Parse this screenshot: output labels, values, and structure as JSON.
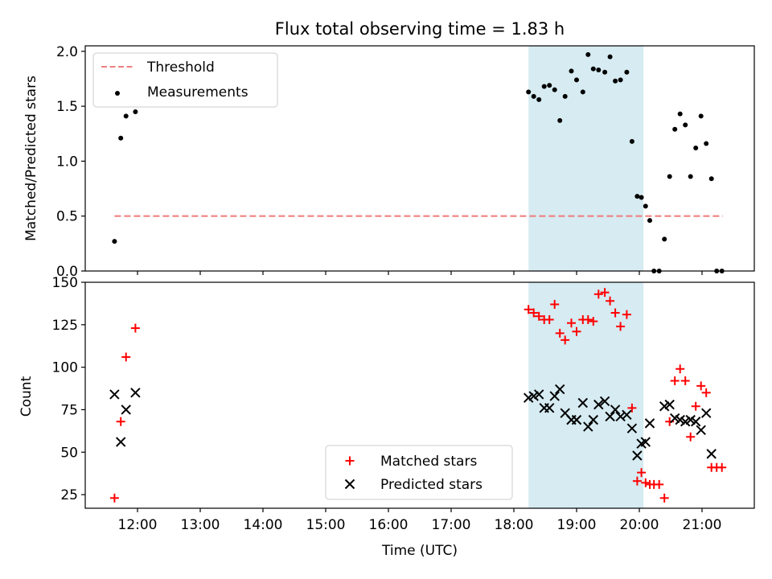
{
  "figure": {
    "title": "Flux total observing time = 1.83 h",
    "xlabel": "Time (UTC)"
  },
  "colors": {
    "threshold": "#f08080",
    "measurement": "#000000",
    "matched": "#ff0000",
    "predicted": "#000000",
    "highlight": "#add8e6"
  },
  "chart_data": [
    {
      "type": "scatter",
      "panel": "top",
      "ylabel": "Matched/Predicted stars",
      "xlim": [
        "11:10",
        "21:50"
      ],
      "ylim": [
        0,
        2.05
      ],
      "yticks": [
        "0.0",
        "0.5",
        "1.0",
        "1.5",
        "2.0"
      ],
      "xticks": [
        "12:00",
        "13:00",
        "14:00",
        "15:00",
        "16:00",
        "17:00",
        "18:00",
        "19:00",
        "20:00",
        "21:00"
      ],
      "highlight_span": [
        "18:14",
        "20:04"
      ],
      "legend": {
        "location": "upper-left",
        "entries": [
          "Threshold",
          "Measurements"
        ]
      },
      "series": [
        {
          "name": "Threshold",
          "kind": "dashed-line",
          "x": [
            "11:38",
            "21:20"
          ],
          "y": [
            0.5,
            0.5
          ]
        },
        {
          "name": "Measurements",
          "kind": "points",
          "x": [
            "11:38",
            "11:44",
            "11:49",
            "11:58",
            "18:14",
            "18:19",
            "18:24",
            "18:29",
            "18:34",
            "18:39",
            "18:44",
            "18:49",
            "18:55",
            "19:00",
            "19:06",
            "19:11",
            "19:16",
            "19:21",
            "19:27",
            "19:32",
            "19:37",
            "19:42",
            "19:48",
            "19:53",
            "19:58",
            "20:02",
            "20:06",
            "20:10",
            "20:14",
            "20:19",
            "20:24",
            "20:29",
            "20:34",
            "20:39",
            "20:44",
            "20:49",
            "20:54",
            "20:59",
            "21:04",
            "21:09",
            "21:14",
            "21:19"
          ],
          "y": [
            0.27,
            1.21,
            1.41,
            1.45,
            1.63,
            1.59,
            1.56,
            1.68,
            1.69,
            1.65,
            1.37,
            1.59,
            1.82,
            1.74,
            1.63,
            1.97,
            1.84,
            1.83,
            1.81,
            1.95,
            1.73,
            1.74,
            1.81,
            1.18,
            0.68,
            0.67,
            0.59,
            0.46,
            0.0,
            0.0,
            0.29,
            0.86,
            1.29,
            1.43,
            1.33,
            0.86,
            1.12,
            1.41,
            1.16,
            0.84,
            0.0,
            0.0
          ]
        }
      ]
    },
    {
      "type": "scatter",
      "panel": "bottom",
      "ylabel": "Count",
      "xlim": [
        "11:10",
        "21:50"
      ],
      "ylim": [
        17,
        150
      ],
      "yticks": [
        "25",
        "50",
        "75",
        "100",
        "125",
        "150"
      ],
      "xticks": [
        "12:00",
        "13:00",
        "14:00",
        "15:00",
        "16:00",
        "17:00",
        "18:00",
        "19:00",
        "20:00",
        "21:00"
      ],
      "highlight_span": [
        "18:14",
        "20:04"
      ],
      "legend": {
        "location": "lower-center",
        "entries": [
          "Matched stars",
          "Predicted stars"
        ]
      },
      "series": [
        {
          "name": "Matched stars",
          "marker": "plus",
          "x": [
            "11:38",
            "11:44",
            "11:49",
            "11:58",
            "18:14",
            "18:19",
            "18:24",
            "18:29",
            "18:34",
            "18:39",
            "18:44",
            "18:49",
            "18:55",
            "19:00",
            "19:06",
            "19:11",
            "19:16",
            "19:21",
            "19:27",
            "19:32",
            "19:37",
            "19:42",
            "19:48",
            "19:53",
            "19:58",
            "20:02",
            "20:06",
            "20:10",
            "20:14",
            "20:19",
            "20:24",
            "20:29",
            "20:34",
            "20:39",
            "20:44",
            "20:49",
            "20:54",
            "20:59",
            "21:04",
            "21:09",
            "21:14",
            "21:19"
          ],
          "y": [
            23,
            68,
            106,
            123,
            134,
            132,
            130,
            128,
            128,
            137,
            120,
            116,
            126,
            121,
            128,
            128,
            127,
            143,
            144,
            139,
            132,
            124,
            131,
            76,
            33,
            38,
            32,
            31,
            31,
            31,
            23,
            68,
            92,
            99,
            92,
            59,
            77,
            89,
            85,
            41,
            41,
            41
          ]
        },
        {
          "name": "Predicted stars",
          "marker": "x",
          "x": [
            "11:38",
            "11:44",
            "11:49",
            "11:58",
            "18:14",
            "18:19",
            "18:24",
            "18:29",
            "18:34",
            "18:39",
            "18:44",
            "18:49",
            "18:55",
            "19:00",
            "19:06",
            "19:11",
            "19:16",
            "19:21",
            "19:27",
            "19:32",
            "19:37",
            "19:42",
            "19:48",
            "19:53",
            "19:58",
            "20:02",
            "20:06",
            "20:10",
            "20:24",
            "20:29",
            "20:34",
            "20:39",
            "20:44",
            "20:49",
            "20:54",
            "20:59",
            "21:04",
            "21:09"
          ],
          "y": [
            84,
            56,
            75,
            85,
            82,
            83,
            84,
            76,
            76,
            83,
            87,
            73,
            69,
            69,
            79,
            65,
            69,
            78,
            80,
            71,
            75,
            71,
            72,
            64,
            48,
            55,
            56,
            67,
            77,
            78,
            70,
            69,
            68,
            69,
            68,
            63,
            73,
            49
          ]
        }
      ]
    }
  ]
}
